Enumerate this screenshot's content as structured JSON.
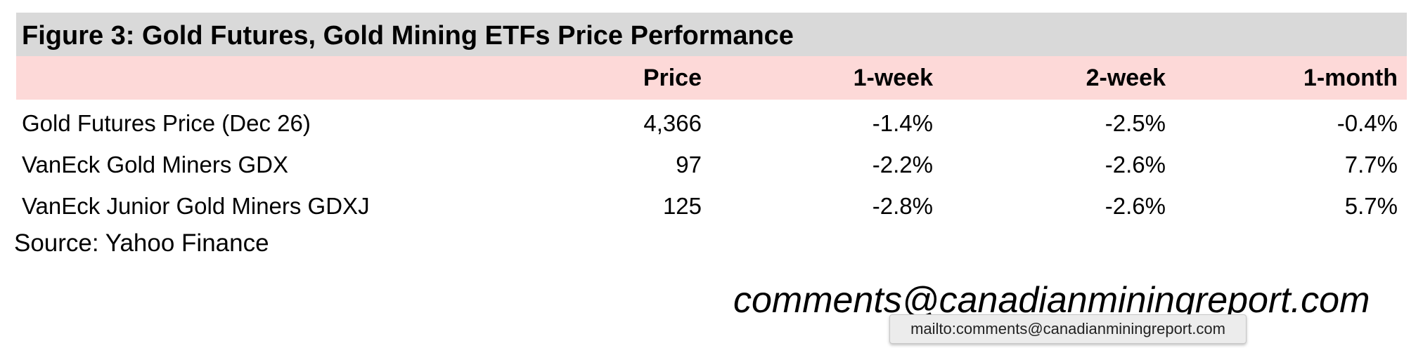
{
  "title": "Figure 3: Gold Futures, Gold Mining ETFs Price Performance",
  "table": {
    "header": [
      "Price",
      "1-week",
      "2-week",
      "1-month"
    ],
    "rows": [
      [
        "Gold Futures Price (Dec 26)",
        "4,366",
        "-1.4%",
        "-2.5%",
        "-0.4%"
      ],
      [
        "VanEck Gold Miners GDX",
        "97",
        "-2.2%",
        "-2.6%",
        "7.7%"
      ],
      [
        "VanEck Junior Gold Miners GDXJ",
        "125",
        "-2.8%",
        "-2.6%",
        "5.7%"
      ]
    ]
  },
  "source": "Source: Yahoo Finance",
  "email": "comments@canadianminingreport.com",
  "tooltip": "mailto:comments@canadianminingreport.com"
}
